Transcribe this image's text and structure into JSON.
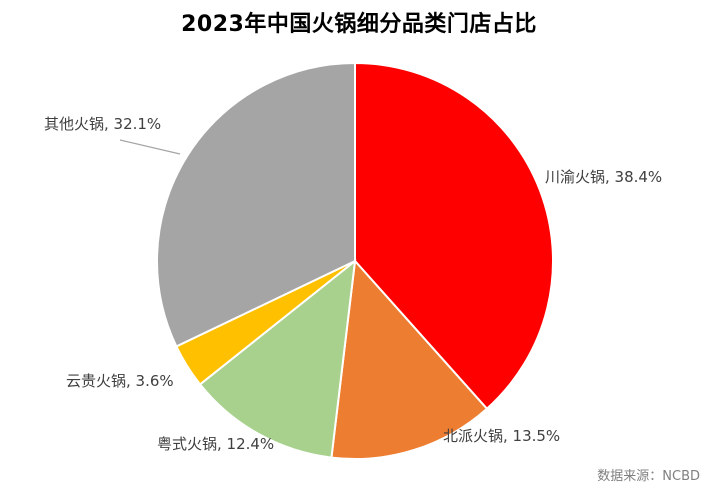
{
  "chart_data": {
    "type": "pie",
    "title": "2023年中国火锅细分品类门店占比",
    "source": "数据来源：NCBD",
    "slices": [
      {
        "label": "川渝火锅, 38.4%",
        "value": 38.4,
        "color": "#ff0000"
      },
      {
        "label": "北派火锅, 13.5%",
        "value": 13.5,
        "color": "#ed7d31"
      },
      {
        "label": "粤式火锅, 12.4%",
        "value": 12.4,
        "color": "#a9d18e"
      },
      {
        "label": "云贵火锅, 3.6%",
        "value": 3.6,
        "color": "#ffc000"
      },
      {
        "label": "其他火锅, 32.1%",
        "value": 32.1,
        "color": "#a5a5a5"
      }
    ]
  }
}
